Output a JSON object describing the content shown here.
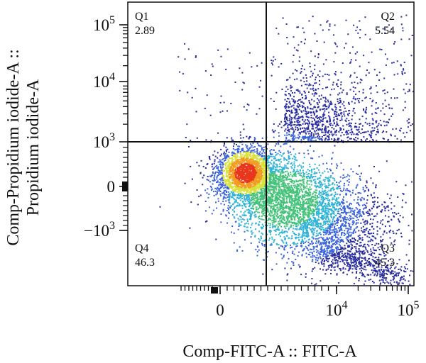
{
  "chart_data": {
    "type": "scatter",
    "subtype": "flow-cytometry-density-dot-plot",
    "xlabel": "Comp-FITC-A :: FITC-A",
    "ylabel_lines": [
      "Comp-Propidium iodide-A ::",
      "Propidium iodide-A"
    ],
    "x_scale": "biexponential",
    "y_scale": "biexponential",
    "x_ticks": [
      {
        "value": 0,
        "base": "0",
        "exp": ""
      },
      {
        "value": 10000,
        "base": "10",
        "exp": "4"
      },
      {
        "value": 100000,
        "base": "10",
        "exp": "5"
      }
    ],
    "y_ticks": [
      {
        "value": 100000,
        "base": "10",
        "exp": "5"
      },
      {
        "value": 10000,
        "base": "10",
        "exp": "4"
      },
      {
        "value": 1000,
        "base": "10",
        "exp": "3"
      },
      {
        "value": 0,
        "base": "0",
        "exp": ""
      },
      {
        "value": -1000,
        "base": "−10",
        "exp": "3"
      }
    ],
    "gate": {
      "x_threshold": 1800,
      "y_threshold": 1000
    },
    "quadrants": [
      {
        "name": "Q1",
        "percent": "2.89",
        "region": "top-left"
      },
      {
        "name": "Q2",
        "percent": "5.54",
        "region": "top-right"
      },
      {
        "name": "Q3",
        "percent": "45.3",
        "region": "bottom-right"
      },
      {
        "name": "Q4",
        "percent": "46.3",
        "region": "bottom-left"
      }
    ],
    "density_colors": [
      "#2b2f9e",
      "#3a62d9",
      "#2fb3d6",
      "#45c27a",
      "#d8e23a",
      "#f29b1d",
      "#e8361c"
    ],
    "grid": false,
    "legend": "none"
  }
}
